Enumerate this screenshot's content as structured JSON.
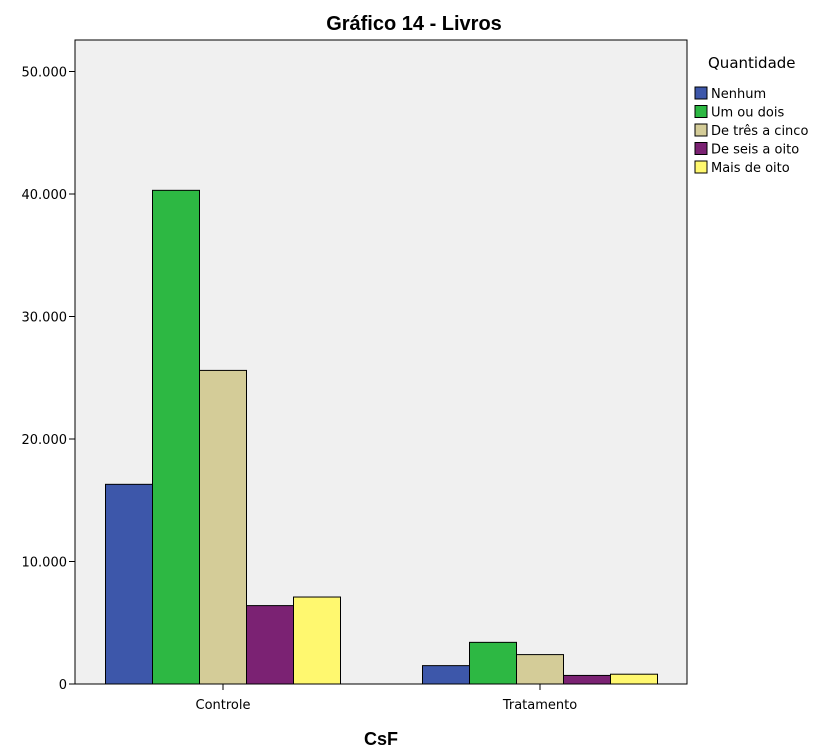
{
  "chart_data": {
    "type": "bar",
    "title": "Gráfico 14 - Livros",
    "xlabel": "CsF",
    "ylabel": "",
    "categories": [
      "Controle",
      "Tratamento"
    ],
    "series": [
      {
        "name": "Nenhum",
        "values": [
          16300,
          1500
        ],
        "color": "#3d57aa"
      },
      {
        "name": "Um ou dois",
        "values": [
          40300,
          3400
        ],
        "color": "#2db843"
      },
      {
        "name": "De três a cinco",
        "values": [
          25600,
          2400
        ],
        "color": "#d4cc98"
      },
      {
        "name": "De seis a oito",
        "values": [
          6400,
          700
        ],
        "color": "#7b2273"
      },
      {
        "name": "Mais de oito",
        "values": [
          7100,
          800
        ],
        "color": "#fff86f"
      }
    ],
    "ylim": [
      0,
      55000
    ],
    "yticks": [
      0,
      10000,
      20000,
      30000,
      40000,
      50000
    ],
    "ytick_labels": [
      "0",
      "10.000",
      "20.000",
      "30.000",
      "40.000",
      "50.000"
    ],
    "legend": {
      "title": "Quantidade",
      "position": "top-right"
    },
    "grid": false,
    "plot_background": "#f0f0f0"
  }
}
